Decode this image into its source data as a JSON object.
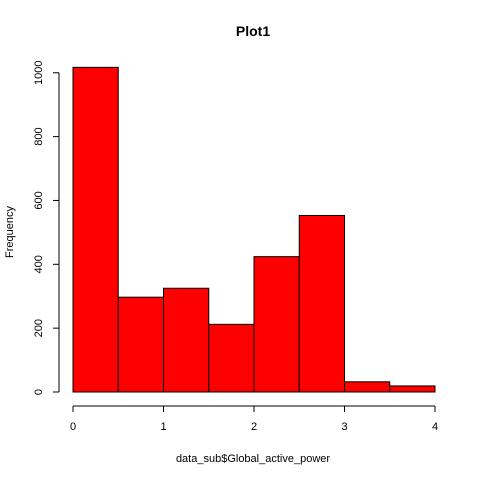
{
  "chart_data": {
    "type": "bar",
    "title": "Plot1",
    "xlabel": "data_sub$Global_active_power",
    "ylabel": "Frequency",
    "bins": [
      {
        "start": 0.0,
        "end": 0.5,
        "count": 1017
      },
      {
        "start": 0.5,
        "end": 1.0,
        "count": 297
      },
      {
        "start": 1.0,
        "end": 1.5,
        "count": 325
      },
      {
        "start": 1.5,
        "end": 2.0,
        "count": 212
      },
      {
        "start": 2.0,
        "end": 2.5,
        "count": 424
      },
      {
        "start": 2.5,
        "end": 3.0,
        "count": 553
      },
      {
        "start": 3.0,
        "end": 3.5,
        "count": 32
      },
      {
        "start": 3.5,
        "end": 4.0,
        "count": 19
      }
    ],
    "xlim": [
      0,
      4
    ],
    "ylim": [
      0,
      1040
    ],
    "x_ticks": [
      "0",
      "1",
      "2",
      "3",
      "4"
    ],
    "y_ticks": [
      "0",
      "200",
      "400",
      "600",
      "800",
      "1000"
    ],
    "bar_color": "#ff0000",
    "grid": false
  }
}
